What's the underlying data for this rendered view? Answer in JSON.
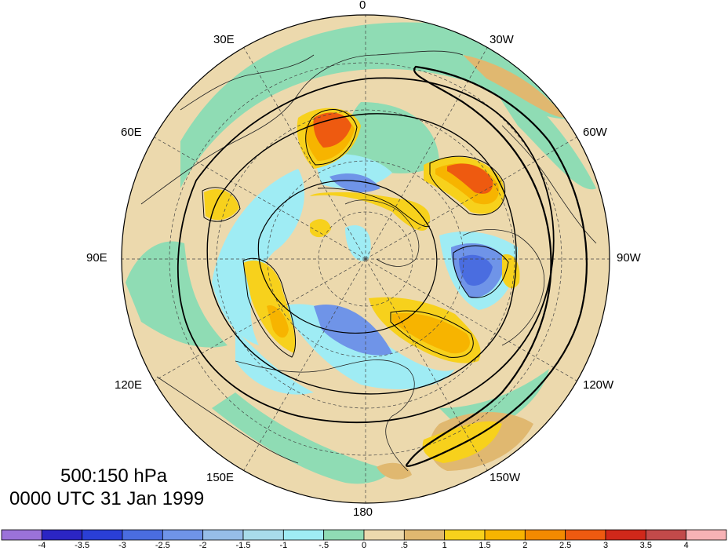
{
  "title": {
    "line1": "500:150 hPa",
    "line2": "0000 UTC 31 Jan 1999"
  },
  "longitude_labels": {
    "n0": "0",
    "n30e": "30E",
    "n30w": "30W",
    "n60e": "60E",
    "n60w": "60W",
    "n90e": "90E",
    "n90w": "90W",
    "n120e": "120E",
    "n120w": "120W",
    "n150e": "150E",
    "n150w": "150W",
    "n180": "180"
  },
  "colorbar": {
    "labels": [
      "-4",
      "-3.5",
      "-3",
      "-2.5",
      "-2",
      "-1.5",
      "-1",
      "-.5",
      "0",
      ".5",
      "1",
      "1.5",
      "2",
      "2.5",
      "3",
      "3.5",
      "4"
    ],
    "colors": [
      "#9b72d9",
      "#2b25c4",
      "#2a3fd6",
      "#4a6de0",
      "#6f94e8",
      "#96bde8",
      "#a8dcea",
      "#9fecf4",
      "#8fdcb4",
      "#ecd9ad",
      "#e0b870",
      "#f7d11c",
      "#f7b400",
      "#f38a00",
      "#ee5a10",
      "#d0281a",
      "#c24a4a",
      "#f7b2b5"
    ]
  },
  "map": {
    "projection": "north polar stereographic",
    "colors": {
      "ocean_neutral": "#8fdcb4",
      "land_tan": "#ecd9ad",
      "positive_light": "#e0b870",
      "positive_yellow": "#f7d11c",
      "positive_orange": "#f7b400",
      "positive_red": "#ee5a10",
      "negative_cyan": "#9fecf4",
      "negative_blue": "#6f94e8",
      "negative_dark": "#4a6de0"
    }
  }
}
